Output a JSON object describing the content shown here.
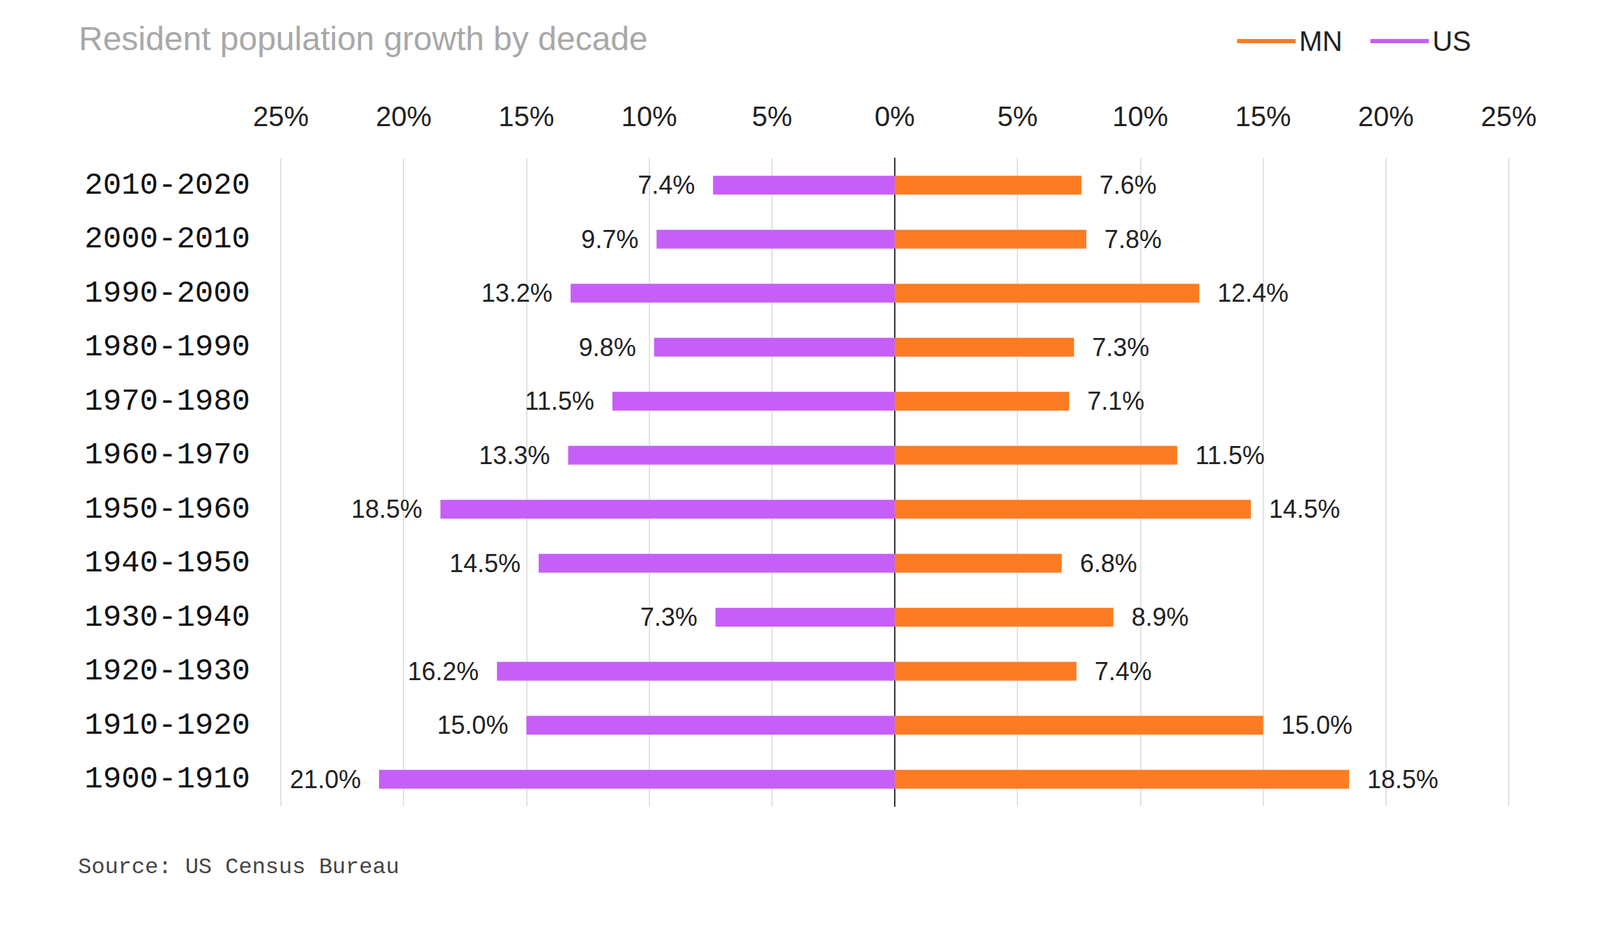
{
  "chart_data": {
    "type": "bar",
    "orientation": "horizontal",
    "title": "Resident population growth by decade",
    "source": "Source: US Census Bureau",
    "categories": [
      "2010-2020",
      "2000-2010",
      "1990-2000",
      "1980-1990",
      "1970-1980",
      "1960-1970",
      "1950-1960",
      "1940-1950",
      "1930-1940",
      "1920-1930",
      "1910-1920",
      "1900-1910"
    ],
    "series": [
      {
        "name": "MN",
        "color": "#fd7c23",
        "values": [
          7.6,
          7.8,
          12.4,
          7.3,
          7.1,
          11.5,
          14.5,
          6.8,
          8.9,
          7.4,
          15.0,
          18.5
        ],
        "value_labels": [
          "7.6%",
          "7.8%",
          "12.4%",
          "7.3%",
          "7.1%",
          "11.5%",
          "14.5%",
          "6.8%",
          "8.9%",
          "7.4%",
          "15.0%",
          "18.5%"
        ]
      },
      {
        "name": "US",
        "color": "#c65ff7",
        "values": [
          7.4,
          9.7,
          13.2,
          9.8,
          11.5,
          13.3,
          18.5,
          14.5,
          7.3,
          16.2,
          15.0,
          21.0
        ],
        "value_labels": [
          "7.4%",
          "9.7%",
          "13.2%",
          "9.8%",
          "11.5%",
          "13.3%",
          "18.5%",
          "14.5%",
          "7.3%",
          "16.2%",
          "15.0%",
          "21.0%"
        ]
      }
    ],
    "xlim": [
      0,
      25
    ],
    "xticks": [
      {
        "value": 0,
        "label": "0%"
      },
      {
        "value": 5,
        "label": "5%"
      },
      {
        "value": 10,
        "label": "10%"
      },
      {
        "value": 15,
        "label": "15%"
      },
      {
        "value": 20,
        "label": "20%"
      },
      {
        "value": 25,
        "label": "25%"
      }
    ],
    "grid": true,
    "legend": "top right",
    "data_labels": true
  }
}
